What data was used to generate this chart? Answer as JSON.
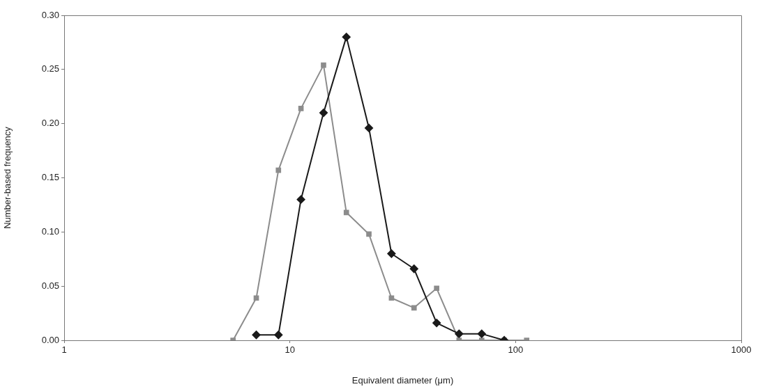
{
  "chart_data": {
    "type": "line",
    "xlabel": "Equivalent diameter (μm)",
    "ylabel": "Number-based frequency",
    "x": [
      5.6,
      7.1,
      8.9,
      11.2,
      14.1,
      17.8,
      22.4,
      28.2,
      35.5,
      44.7,
      56.2,
      70.8,
      89.1,
      112
    ],
    "series": [
      {
        "color": "#1a1a1a",
        "marker": "diamond",
        "values": [
          null,
          0.005,
          0.005,
          0.13,
          0.21,
          0.28,
          0.196,
          0.08,
          0.066,
          0.016,
          0.006,
          0.006,
          0.0,
          null
        ]
      },
      {
        "color": "#8c8c8c",
        "marker": "square",
        "values": [
          0.0,
          0.039,
          0.157,
          0.214,
          0.254,
          0.118,
          0.098,
          0.039,
          0.03,
          0.048,
          0.0,
          0.0,
          0.0,
          0.0
        ]
      }
    ],
    "log": "x",
    "xlim": [
      1,
      1000
    ],
    "xticks": [
      1,
      10,
      100,
      1000
    ],
    "ylim": [
      0,
      0.3
    ],
    "yticks": [
      {
        "value": 0,
        "label": "0.00"
      },
      {
        "value": 0.05,
        "label": "0.05"
      },
      {
        "value": 0.1,
        "label": "0.10"
      },
      {
        "value": 0.15,
        "label": "0.15"
      },
      {
        "value": 0.2,
        "label": "0.20"
      },
      {
        "value": 0.25,
        "label": "0.25"
      },
      {
        "value": 0.3,
        "label": "0.30"
      }
    ],
    "grid": false,
    "legend": false
  }
}
